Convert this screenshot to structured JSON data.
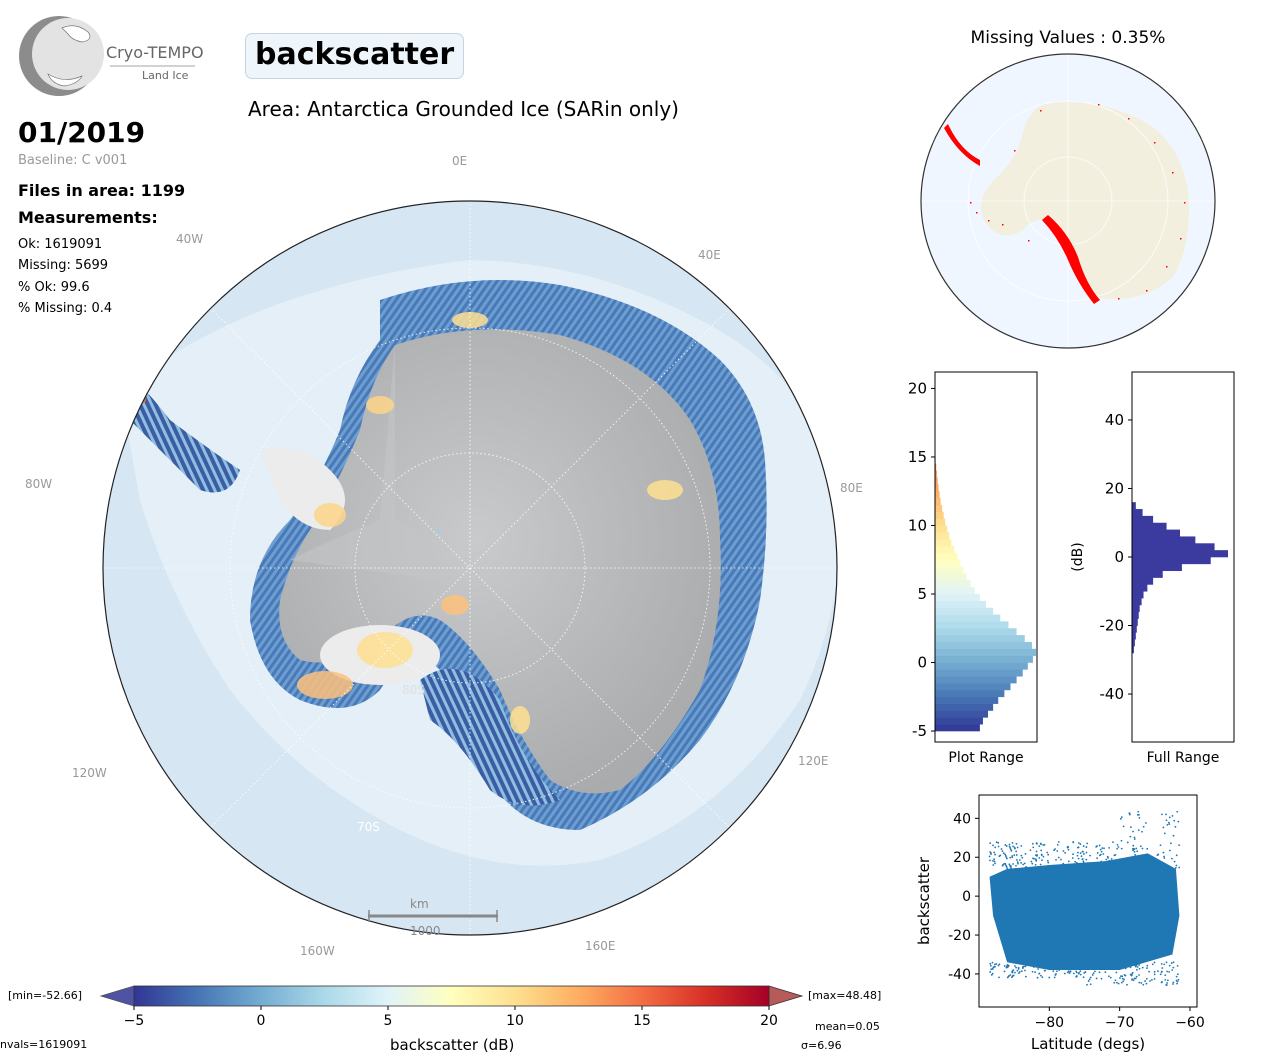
{
  "header": {
    "logo_text": "Cryo-TEMPO",
    "logo_subtext": "Land Ice",
    "parameter": "backscatter",
    "area_title": "Area: Antarctica Grounded Ice (SARin only)",
    "date": "01/2019",
    "baseline": "Baseline: C v001"
  },
  "stats": {
    "files": "Files in area: 1199",
    "measurements_title": "Measurements:",
    "ok": "Ok: 1619091",
    "missing": "Missing: 5699",
    "pct_ok": "% Ok: 99.6",
    "pct_missing": "% Missing: 0.4"
  },
  "map": {
    "lon_labels": [
      "0E",
      "40E",
      "80E",
      "120E",
      "160E",
      "160W",
      "120W",
      "80W",
      "40W"
    ],
    "lat_labels": [
      "80S",
      "70S"
    ],
    "scale_unit": "km",
    "scale_value": "1000"
  },
  "missing_map": {
    "title": "Missing Values : 0.35%"
  },
  "colorbar": {
    "min_text": "[min=-52.66]",
    "max_text": "[max=48.48]",
    "label": "backscatter (dB)",
    "mean_text": "mean=0.05",
    "sigma_text": "σ=6.96",
    "nvals_text": "nvals=1619091"
  },
  "colors": {
    "colormap": [
      "#313695",
      "#4575b4",
      "#74add1",
      "#abd9e9",
      "#e0f3f8",
      "#ffffbf",
      "#fee090",
      "#fdae61",
      "#f46d43",
      "#d73027",
      "#a50026"
    ],
    "full_range_bar": "#3a3a9f",
    "scatter": "#1f77b4",
    "missing_dots": "#ff0000",
    "ocean": "#d6e6f3",
    "ice_grey": "#b3b5b7"
  },
  "chart_data": [
    {
      "type": "bar",
      "orientation": "horizontal",
      "name_label": "Plot Range",
      "xlabel": "Plot Range",
      "ylim": [
        -5.8,
        21.2
      ],
      "yticks": [
        -5,
        0,
        5,
        10,
        15,
        20
      ],
      "bins": [
        [
          -5,
          0.44
        ],
        [
          -4.5,
          0.47
        ],
        [
          -4,
          0.52
        ],
        [
          -3.5,
          0.57
        ],
        [
          -3,
          0.62
        ],
        [
          -2.5,
          0.68
        ],
        [
          -2,
          0.74
        ],
        [
          -1.5,
          0.8
        ],
        [
          -1,
          0.86
        ],
        [
          -0.5,
          0.91
        ],
        [
          0,
          0.96
        ],
        [
          0.5,
          0.99
        ],
        [
          1,
          0.95
        ],
        [
          1.5,
          0.88
        ],
        [
          2,
          0.8
        ],
        [
          2.5,
          0.72
        ],
        [
          3,
          0.64
        ],
        [
          3.5,
          0.57
        ],
        [
          4,
          0.5
        ],
        [
          4.5,
          0.44
        ],
        [
          5,
          0.39
        ],
        [
          5.5,
          0.35
        ],
        [
          6,
          0.31
        ],
        [
          6.5,
          0.28
        ],
        [
          7,
          0.25
        ],
        [
          7.5,
          0.22
        ],
        [
          8,
          0.19
        ],
        [
          8.5,
          0.16
        ],
        [
          9,
          0.14
        ],
        [
          9.5,
          0.12
        ],
        [
          10,
          0.1
        ],
        [
          10.5,
          0.085
        ],
        [
          11,
          0.07
        ],
        [
          11.5,
          0.055
        ],
        [
          12,
          0.045
        ],
        [
          12.5,
          0.035
        ],
        [
          13,
          0.026
        ],
        [
          13.5,
          0.018
        ],
        [
          14,
          0.012
        ],
        [
          14.5,
          0.006
        ]
      ]
    },
    {
      "type": "bar",
      "orientation": "horizontal",
      "xlabel": "Full Range",
      "ylabel": "(dB)",
      "ylim": [
        -54,
        54
      ],
      "yticks": [
        -40,
        -20,
        0,
        20,
        40
      ],
      "bins": [
        [
          -28,
          0.02
        ],
        [
          -26,
          0.03
        ],
        [
          -24,
          0.04
        ],
        [
          -22,
          0.05
        ],
        [
          -20,
          0.06
        ],
        [
          -18,
          0.07
        ],
        [
          -16,
          0.08
        ],
        [
          -14,
          0.1
        ],
        [
          -12,
          0.12
        ],
        [
          -10,
          0.16
        ],
        [
          -8,
          0.22
        ],
        [
          -6,
          0.32
        ],
        [
          -4,
          0.52
        ],
        [
          -2,
          0.82
        ],
        [
          0,
          1.0
        ],
        [
          2,
          0.86
        ],
        [
          4,
          0.66
        ],
        [
          6,
          0.5
        ],
        [
          8,
          0.36
        ],
        [
          10,
          0.22
        ],
        [
          12,
          0.11
        ],
        [
          14,
          0.04
        ]
      ]
    },
    {
      "type": "scatter",
      "xlabel": "Latitude (degs)",
      "ylabel": "backscatter",
      "xlim": [
        -90,
        -59
      ],
      "ylim": [
        -57,
        52
      ],
      "xticks": [
        -80,
        -70,
        -60
      ],
      "yticks": [
        -40,
        -20,
        0,
        20,
        40
      ],
      "x_range": [
        -88.5,
        -61.5
      ],
      "y_core": [
        -30,
        12
      ],
      "y_extreme": [
        -52,
        48
      ]
    },
    {
      "type": "colorbar",
      "xlabel": "backscatter (dB)",
      "xlim": [
        -5,
        20
      ],
      "xticks": [
        -5,
        0,
        5,
        10,
        15,
        20
      ]
    }
  ]
}
